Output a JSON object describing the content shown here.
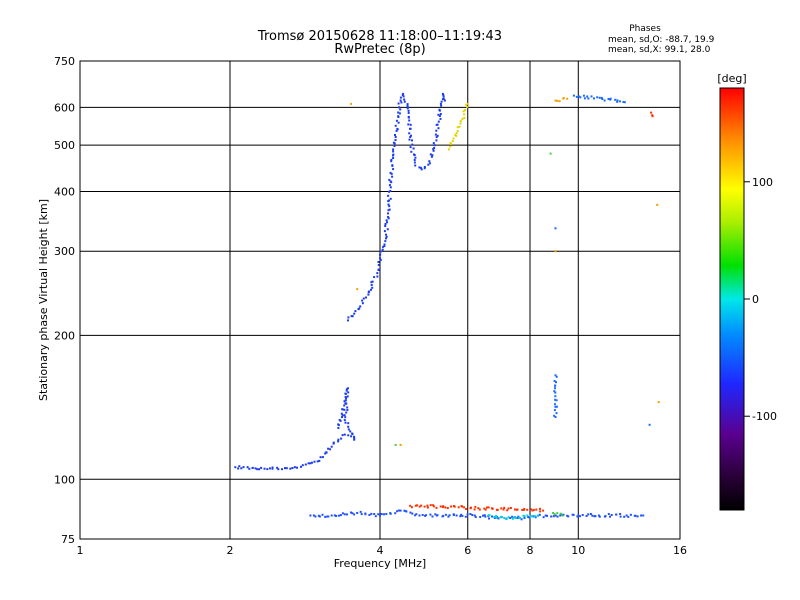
{
  "chart_data": {
    "type": "scatter",
    "title": "Tromsø 20150628 11:18:00–11:19:43",
    "subtitle": "RwPretec (8p)",
    "xlabel": "Frequency [MHz]",
    "ylabel": "Stationary phase Virtual Height [km]",
    "x_scale": "log",
    "y_scale": "log",
    "xlim": [
      1,
      16
    ],
    "ylim": [
      75,
      750
    ],
    "x_ticks": [
      1,
      2,
      4,
      6,
      8,
      10,
      16
    ],
    "y_ticks": [
      75,
      100,
      200,
      300,
      400,
      500,
      600,
      750
    ],
    "grid": true,
    "phases_header": "Phases",
    "phases_line_o": "mean, sd,O: -88.7, 19.9",
    "phases_line_x": "mean, sd,X: 99.1, 28.0",
    "colorbar": {
      "label": "[deg]",
      "range": [
        -180,
        180
      ],
      "ticks": [
        100,
        0,
        -100
      ],
      "colormap": "rainbow (black-purple-blue-cyan-green-yellow-red)"
    },
    "traces": [
      {
        "phase_deg": -110,
        "color": "#1c3cf0",
        "points": [
          [
            2.05,
            106
          ],
          [
            2.5,
            105
          ],
          [
            2.6,
            105.5
          ],
          [
            2.7,
            106
          ],
          [
            2.8,
            107
          ],
          [
            2.9,
            108
          ],
          [
            3.0,
            109
          ],
          [
            3.2,
            117
          ],
          [
            3.3,
            121
          ],
          [
            3.4,
            124
          ],
          [
            3.5,
            123
          ],
          [
            3.55,
            121
          ],
          [
            3.4,
            133
          ],
          [
            3.45,
            155
          ],
          [
            3.3,
            128
          ]
        ]
      },
      {
        "phase_deg": -110,
        "color": "#1c3cf0",
        "points": [
          [
            3.45,
            215
          ],
          [
            3.55,
            222
          ],
          [
            3.65,
            230
          ],
          [
            3.75,
            240
          ],
          [
            3.85,
            255
          ],
          [
            3.95,
            270
          ],
          [
            4.0,
            290
          ],
          [
            4.1,
            315
          ],
          [
            4.15,
            360
          ],
          [
            4.2,
            420
          ],
          [
            4.25,
            470
          ],
          [
            4.3,
            520
          ],
          [
            4.35,
            575
          ],
          [
            4.4,
            620
          ],
          [
            4.45,
            640
          ],
          [
            4.55,
            600
          ],
          [
            4.6,
            520
          ],
          [
            4.7,
            460
          ],
          [
            4.85,
            445
          ],
          [
            5.0,
            455
          ],
          [
            5.15,
            500
          ],
          [
            5.25,
            560
          ],
          [
            5.3,
            610
          ],
          [
            5.35,
            640
          ],
          [
            5.4,
            620
          ]
        ]
      },
      {
        "phase_deg": 110,
        "color": "#e6d200",
        "points": [
          [
            5.5,
            490
          ],
          [
            5.6,
            510
          ],
          [
            5.7,
            530
          ],
          [
            5.8,
            555
          ],
          [
            5.9,
            580
          ],
          [
            6.0,
            610
          ]
        ]
      },
      {
        "phase_deg": -100,
        "color": "#2050ff",
        "points": [
          [
            2.9,
            84
          ],
          [
            3.2,
            84
          ],
          [
            3.6,
            85
          ],
          [
            4.0,
            84
          ],
          [
            4.4,
            86
          ],
          [
            4.8,
            84
          ],
          [
            5.2,
            84
          ],
          [
            5.7,
            84
          ],
          [
            6.2,
            84
          ],
          [
            6.8,
            83
          ],
          [
            7.3,
            83
          ],
          [
            7.8,
            83
          ],
          [
            8.6,
            84
          ],
          [
            9.2,
            84
          ],
          [
            10.0,
            84
          ],
          [
            11.0,
            84
          ],
          [
            12.5,
            84
          ],
          [
            13.5,
            84
          ]
        ]
      },
      {
        "phase_deg": -60,
        "color": "#00d2e0",
        "points": [
          [
            6.6,
            84
          ],
          [
            7.1,
            83
          ],
          [
            7.5,
            83
          ],
          [
            7.9,
            84
          ],
          [
            8.3,
            84
          ]
        ]
      },
      {
        "phase_deg": 160,
        "color": "#ff3000",
        "points": [
          [
            4.6,
            88
          ],
          [
            6.3,
            87
          ],
          [
            8.5,
            86
          ],
          [
            14.0,
            585
          ],
          [
            14.1,
            575
          ]
        ]
      },
      {
        "phase_deg": 120,
        "color": "#f0a000",
        "points": [
          [
            3.5,
            610
          ],
          [
            3.6,
            250
          ],
          [
            9.0,
            300
          ],
          [
            9.0,
            620
          ],
          [
            9.5,
            625
          ],
          [
            14.4,
            375
          ],
          [
            14.5,
            145
          ],
          [
            4.4,
            118
          ]
        ]
      },
      {
        "phase_deg": -90,
        "color": "#1a6aff",
        "points": [
          [
            9.0,
            165
          ],
          [
            9.0,
            135
          ],
          [
            9.0,
            335
          ],
          [
            9.8,
            635
          ],
          [
            12.4,
            615
          ],
          [
            13.9,
            130
          ]
        ]
      },
      {
        "phase_deg": 30,
        "color": "#40d040",
        "points": [
          [
            4.3,
            118
          ],
          [
            8.8,
            480
          ],
          [
            8.9,
            85
          ],
          [
            9.3,
            84
          ]
        ]
      }
    ]
  }
}
